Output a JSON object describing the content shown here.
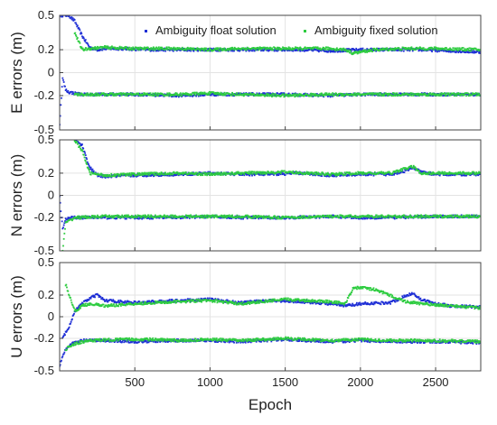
{
  "chart_data": {
    "type": "scatter",
    "xlabel": "Epoch",
    "xlim": [
      0,
      2800
    ],
    "xticks": [
      500,
      1000,
      1500,
      2000,
      2500
    ],
    "shared_x_axis": true,
    "grid": true,
    "legend": {
      "placement": "top-right of first panel",
      "entries": [
        {
          "name": "Ambiguity float solution",
          "color": "#1f2fd6"
        },
        {
          "name": "Ambiguity fixed solution",
          "color": "#2ecc40"
        }
      ]
    },
    "panels": [
      {
        "id": "E",
        "ylabel": "E errors (m)",
        "ylim": [
          -0.5,
          0.5
        ],
        "yticks": [
          -0.5,
          -0.2,
          0,
          0.2,
          0.5
        ],
        "ytick_labels": [
          "-0.5",
          "-0.2",
          "0",
          "0.2",
          "0.5"
        ],
        "series": [
          {
            "name": "Ambiguity float solution",
            "role": "upper",
            "x": [
              0,
              20,
              60,
              100,
              150,
              200,
              250,
              300,
              400,
              600,
              800,
              1000,
              1200,
              1400,
              1600,
              1800,
              2000,
              2200,
              2400,
              2600,
              2800
            ],
            "values": [
              0.5,
              0.5,
              0.5,
              0.45,
              0.32,
              0.22,
              0.2,
              0.21,
              0.21,
              0.2,
              0.2,
              0.2,
              0.2,
              0.2,
              0.2,
              0.19,
              0.2,
              0.2,
              0.2,
              0.19,
              0.18
            ]
          },
          {
            "name": "Ambiguity float solution",
            "role": "lower",
            "x": [
              0,
              20,
              40,
              60,
              100,
              150,
              200,
              300,
              500,
              800,
              1000,
              1200,
              1500,
              1800,
              2000,
              2200,
              2500,
              2800
            ],
            "values": [
              -0.45,
              -0.05,
              -0.15,
              -0.17,
              -0.18,
              -0.19,
              -0.19,
              -0.19,
              -0.19,
              -0.2,
              -0.19,
              -0.19,
              -0.19,
              -0.2,
              -0.19,
              -0.19,
              -0.19,
              -0.19
            ]
          },
          {
            "name": "Ambiguity fixed solution",
            "role": "upper",
            "x": [
              100,
              150,
              200,
              300,
              500,
              800,
              1000,
              1200,
              1500,
              1800,
              1900,
              1950,
              2000,
              2100,
              2300,
              2500,
              2800
            ],
            "values": [
              0.35,
              0.2,
              0.21,
              0.22,
              0.21,
              0.21,
              0.2,
              0.21,
              0.21,
              0.21,
              0.2,
              0.17,
              0.18,
              0.2,
              0.21,
              0.21,
              0.2
            ]
          },
          {
            "name": "Ambiguity fixed solution",
            "role": "lower",
            "x": [
              100,
              200,
              400,
              600,
              800,
              1000,
              1200,
              1500,
              1800,
              2000,
              2200,
              2500,
              2800
            ],
            "values": [
              -0.19,
              -0.19,
              -0.19,
              -0.19,
              -0.19,
              -0.18,
              -0.19,
              -0.2,
              -0.19,
              -0.19,
              -0.19,
              -0.19,
              -0.19
            ]
          }
        ]
      },
      {
        "id": "N",
        "ylabel": "N errors (m)",
        "ylim": [
          -0.5,
          0.5
        ],
        "yticks": [
          -0.5,
          -0.2,
          0,
          0.2,
          0.5
        ],
        "ytick_labels": [
          "-0.5",
          "-0.2",
          "0",
          "0.2",
          "0.5"
        ],
        "series": [
          {
            "name": "Ambiguity float solution",
            "role": "upper",
            "x": [
              100,
              150,
              200,
              250,
              300,
              500,
              800,
              1000,
              1200,
              1400,
              1600,
              1800,
              2000,
              2200,
              2300,
              2350,
              2400,
              2500,
              2600,
              2800
            ],
            "values": [
              0.5,
              0.45,
              0.25,
              0.18,
              0.17,
              0.18,
              0.19,
              0.2,
              0.19,
              0.19,
              0.2,
              0.18,
              0.19,
              0.19,
              0.22,
              0.25,
              0.21,
              0.19,
              0.19,
              0.19
            ]
          },
          {
            "name": "Ambiguity float solution",
            "role": "lower",
            "x": [
              0,
              20,
              40,
              80,
              150,
              300,
              500,
              800,
              1000,
              1200,
              1500,
              1800,
              2000,
              2200,
              2500,
              2800
            ],
            "values": [
              -0.02,
              -0.3,
              -0.22,
              -0.2,
              -0.2,
              -0.2,
              -0.2,
              -0.2,
              -0.19,
              -0.2,
              -0.2,
              -0.19,
              -0.2,
              -0.2,
              -0.19,
              -0.19
            ]
          },
          {
            "name": "Ambiguity fixed solution",
            "role": "upper",
            "x": [
              100,
              150,
              200,
              300,
              500,
              800,
              1000,
              1200,
              1500,
              1800,
              2000,
              2200,
              2300,
              2350,
              2400,
              2500,
              2800
            ],
            "values": [
              0.5,
              0.4,
              0.2,
              0.18,
              0.19,
              0.2,
              0.19,
              0.2,
              0.21,
              0.19,
              0.2,
              0.2,
              0.24,
              0.26,
              0.2,
              0.2,
              0.2
            ]
          },
          {
            "name": "Ambiguity fixed solution",
            "role": "lower",
            "x": [
              20,
              40,
              100,
              300,
              500,
              800,
              1000,
              1200,
              1500,
              1800,
              2000,
              2200,
              2500,
              2800
            ],
            "values": [
              -0.5,
              -0.25,
              -0.2,
              -0.19,
              -0.19,
              -0.19,
              -0.19,
              -0.19,
              -0.2,
              -0.19,
              -0.19,
              -0.19,
              -0.19,
              -0.19
            ]
          }
        ]
      },
      {
        "id": "U",
        "ylabel": "U errors (m)",
        "ylim": [
          -0.5,
          0.5
        ],
        "yticks": [
          -0.5,
          -0.2,
          0,
          0.2,
          0.5
        ],
        "ytick_labels": [
          "-0.5",
          "-0.2",
          "0",
          "0.2",
          "0.5"
        ],
        "series": [
          {
            "name": "Ambiguity float solution",
            "role": "upper",
            "x": [
              20,
              60,
              100,
              150,
              200,
              250,
              300,
              500,
              800,
              1000,
              1200,
              1400,
              1600,
              1800,
              1900,
              2000,
              2200,
              2350,
              2400,
              2500,
              2600,
              2800
            ],
            "values": [
              -0.2,
              -0.1,
              0.05,
              0.12,
              0.17,
              0.2,
              0.15,
              0.13,
              0.15,
              0.16,
              0.13,
              0.15,
              0.14,
              0.12,
              0.1,
              0.12,
              0.13,
              0.22,
              0.16,
              0.12,
              0.1,
              0.09
            ]
          },
          {
            "name": "Ambiguity float solution",
            "role": "lower",
            "x": [
              0,
              40,
              80,
              150,
              300,
              500,
              800,
              1000,
              1200,
              1500,
              1800,
              2000,
              2200,
              2500,
              2800
            ],
            "values": [
              -0.45,
              -0.3,
              -0.25,
              -0.22,
              -0.22,
              -0.23,
              -0.22,
              -0.22,
              -0.23,
              -0.21,
              -0.23,
              -0.22,
              -0.23,
              -0.23,
              -0.24
            ]
          },
          {
            "name": "Ambiguity fixed solution",
            "role": "upper",
            "x": [
              40,
              100,
              150,
              200,
              300,
              500,
              800,
              1000,
              1200,
              1500,
              1800,
              1900,
              1950,
              2000,
              2100,
              2300,
              2400,
              2600,
              2800
            ],
            "values": [
              0.3,
              0.05,
              0.1,
              0.12,
              0.1,
              0.12,
              0.14,
              0.15,
              0.12,
              0.16,
              0.14,
              0.12,
              0.26,
              0.27,
              0.25,
              0.14,
              0.12,
              0.1,
              0.08
            ]
          },
          {
            "name": "Ambiguity fixed solution",
            "role": "lower",
            "x": [
              40,
              100,
              200,
              400,
              600,
              800,
              1000,
              1200,
              1500,
              1800,
              2000,
              2200,
              2500,
              2800
            ],
            "values": [
              -0.3,
              -0.25,
              -0.22,
              -0.21,
              -0.21,
              -0.22,
              -0.21,
              -0.22,
              -0.2,
              -0.22,
              -0.21,
              -0.22,
              -0.22,
              -0.23
            ]
          }
        ]
      }
    ]
  }
}
